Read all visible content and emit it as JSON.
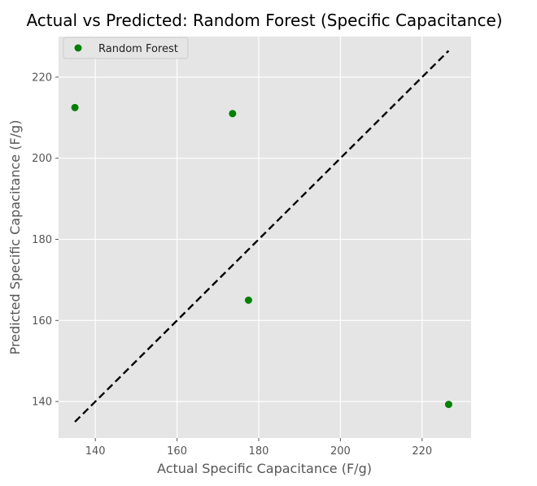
{
  "chart_data": {
    "type": "scatter",
    "title": "Actual vs Predicted: Random Forest (Specific Capacitance)",
    "xlabel": "Actual Specific Capacitance (F/g)",
    "ylabel": "Predicted Specific Capacitance (F/g)",
    "xlim": [
      131,
      232
    ],
    "ylim": [
      131,
      230
    ],
    "xticks": [
      140,
      160,
      180,
      200,
      220
    ],
    "yticks": [
      140,
      160,
      180,
      200,
      220
    ],
    "grid": true,
    "legend_position": "top-left",
    "series": [
      {
        "name": "Random Forest",
        "color": "#008000",
        "x": [
          135.0,
          173.6,
          177.5,
          226.5
        ],
        "y": [
          212.5,
          211.0,
          165.0,
          139.3
        ]
      }
    ],
    "reference_line": {
      "style": "dashed",
      "color": "#000000",
      "x": [
        135.0,
        226.5
      ],
      "y": [
        135.0,
        226.5
      ]
    }
  },
  "colors": {
    "plot_background": "#e5e5e5",
    "grid": "#ffffff",
    "marker": "#008000",
    "reference_line": "#000000"
  }
}
